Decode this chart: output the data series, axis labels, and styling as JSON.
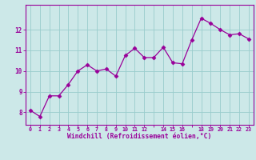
{
  "x": [
    0,
    1,
    2,
    3,
    4,
    5,
    6,
    7,
    8,
    9,
    10,
    11,
    12,
    13,
    14,
    15,
    16,
    17,
    18,
    19,
    20,
    21,
    22,
    23
  ],
  "y": [
    8.1,
    7.8,
    8.8,
    8.8,
    9.35,
    10.0,
    10.3,
    10.0,
    10.1,
    9.75,
    10.75,
    11.1,
    10.65,
    10.65,
    11.15,
    10.4,
    10.35,
    11.5,
    12.55,
    12.3,
    12.0,
    11.75,
    11.8,
    11.55
  ],
  "xlabel": "Windchill (Refroidissement éolien,°C)",
  "xtick_labels": [
    "0",
    "1",
    "2",
    "3",
    "4",
    "5",
    "6",
    "7",
    "8",
    "9",
    "10",
    "11",
    "12",
    "",
    "14",
    "15",
    "16",
    "",
    "18",
    "19",
    "20",
    "21",
    "22",
    "23"
  ],
  "yticks": [
    8,
    9,
    10,
    11,
    12
  ],
  "ylim": [
    7.4,
    13.2
  ],
  "xlim": [
    -0.5,
    23.5
  ],
  "line_color": "#990099",
  "marker_color": "#990099",
  "bg_color": "#cce8e8",
  "grid_color": "#99cccc",
  "axis_color": "#990099",
  "tick_color": "#990099",
  "label_color": "#990099"
}
